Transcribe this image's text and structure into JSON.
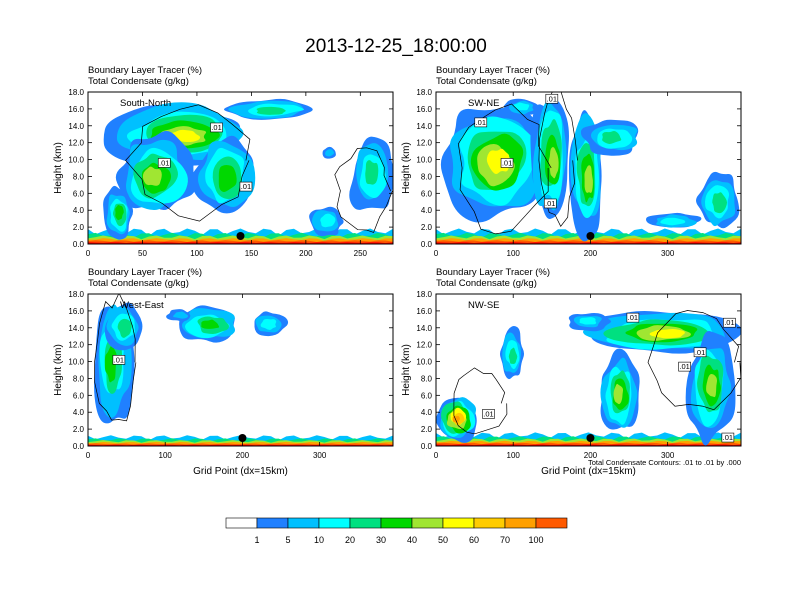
{
  "title": "2013-12-25_18:00:00",
  "chart_data": [
    {
      "type": "heatmap",
      "panel_label": "South-North",
      "header_line1": "Boundary Layer Tracer   (%)",
      "header_line2": "Total Condensate   (g/kg)",
      "ylabel": "Height (km)",
      "xlabel": "",
      "xlim": [
        0,
        280
      ],
      "xticks": [
        "0",
        "50",
        "100",
        "150",
        "200",
        "250"
      ],
      "ylim": [
        0,
        18
      ],
      "yticks": [
        "0.0",
        "2.0",
        "4.0",
        "6.0",
        "8.0",
        "10.0",
        "12.0",
        "14.0",
        "16.0",
        "18.0"
      ],
      "marker_x": 140,
      "contour_labels": [
        {
          "text": ".01",
          "x": 118,
          "y": 13.8
        },
        {
          "text": ".01",
          "x": 70,
          "y": 9.6
        },
        {
          "text": ".01",
          "x": 145,
          "y": 6.8
        }
      ],
      "footnote": ""
    },
    {
      "type": "heatmap",
      "panel_label": "SW-NE",
      "header_line1": "Boundary Layer Tracer   (%)",
      "header_line2": "Total Condensate   (g/kg)",
      "ylabel": "Height (km)",
      "xlabel": "",
      "xlim": [
        0,
        395
      ],
      "xticks": [
        "0",
        "100",
        "200",
        "300"
      ],
      "ylim": [
        0,
        18
      ],
      "yticks": [
        "0.0",
        "2.0",
        "4.0",
        "6.0",
        "8.0",
        "10.0",
        "12.0",
        "14.0",
        "16.0",
        "18.0"
      ],
      "marker_x": 200,
      "contour_labels": [
        {
          "text": ".01",
          "x": 150,
          "y": 17.2
        },
        {
          "text": ".01",
          "x": 58,
          "y": 14.4
        },
        {
          "text": ".01",
          "x": 92,
          "y": 9.6
        },
        {
          "text": ".01",
          "x": 148,
          "y": 4.8
        }
      ],
      "footnote": ""
    },
    {
      "type": "heatmap",
      "panel_label": "West-East",
      "header_line1": "Boundary Layer Tracer   (%)",
      "header_line2": "Total Condensate   (g/kg)",
      "ylabel": "Height (km)",
      "xlabel": "Grid Point (dx=15km)",
      "xlim": [
        0,
        395
      ],
      "xticks": [
        "0",
        "100",
        "200",
        "300"
      ],
      "ylim": [
        0,
        18
      ],
      "yticks": [
        "0.0",
        "2.0",
        "4.0",
        "6.0",
        "8.0",
        "10.0",
        "12.0",
        "14.0",
        "16.0",
        "18.0"
      ],
      "marker_x": 200,
      "contour_labels": [
        {
          "text": ".01",
          "x": 40,
          "y": 10.2
        }
      ],
      "footnote": ""
    },
    {
      "type": "heatmap",
      "panel_label": "NW-SE",
      "header_line1": "Boundary Layer Tracer   (%)",
      "header_line2": "Total Condensate   (g/kg)",
      "ylabel": "Height (km)",
      "xlabel": "Grid Point (dx=15km)",
      "xlim": [
        0,
        395
      ],
      "xticks": [
        "0",
        "100",
        "200",
        "300"
      ],
      "ylim": [
        0,
        18
      ],
      "yticks": [
        "0.0",
        "2.0",
        "4.0",
        "6.0",
        "8.0",
        "10.0",
        "12.0",
        "14.0",
        "16.0",
        "18.0"
      ],
      "marker_x": 200,
      "contour_labels": [
        {
          "text": ".01",
          "x": 255,
          "y": 15.2
        },
        {
          "text": ".01",
          "x": 380,
          "y": 14.6
        },
        {
          "text": ".01",
          "x": 342,
          "y": 11.1
        },
        {
          "text": ".01",
          "x": 322,
          "y": 9.4
        },
        {
          "text": ".01",
          "x": 68,
          "y": 3.8
        },
        {
          "text": ".01",
          "x": 378,
          "y": 1.0
        }
      ],
      "footnote": "Total Condensate Contours: .01 to .01 by .000"
    }
  ],
  "colorbar": {
    "labels": [
      "1",
      "5",
      "10",
      "20",
      "30",
      "40",
      "50",
      "60",
      "70",
      "100"
    ],
    "colors": [
      "#ffffff",
      "#2080ff",
      "#00c0ff",
      "#00ffff",
      "#00e080",
      "#00d800",
      "#a0e632",
      "#ffff00",
      "#ffcc00",
      "#ffa000",
      "#ff5a00",
      "#ff0000"
    ]
  }
}
